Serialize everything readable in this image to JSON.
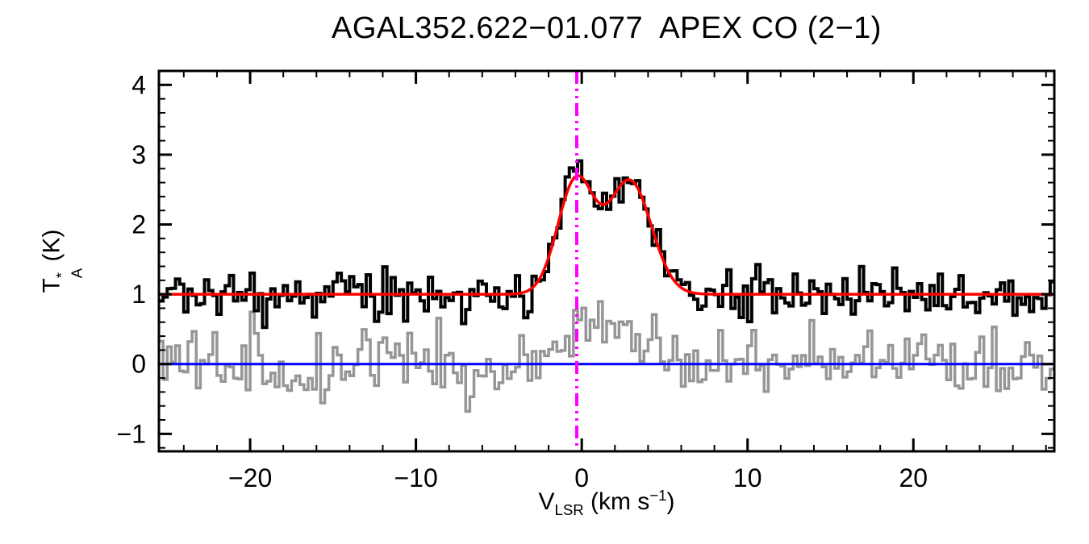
{
  "chart": {
    "title": "AGAL352.622−01.077  APEX CO (2−1)",
    "xlabel": {
      "prefix": "V",
      "sub": "LSR",
      "mid": " (km s",
      "sup": "−1",
      "suffix": ")"
    },
    "ylabel": {
      "prefix": "T",
      "sup": "*",
      "sub": "A",
      "suffix": " (K)"
    }
  },
  "chart_data": {
    "type": "line",
    "title": "AGAL352.622-01.077  APEX CO (2-1)",
    "xlabel": "V_LSR (km s^-1)",
    "ylabel": "T_A^* (K)",
    "xlim": [
      -25.5,
      28.5
    ],
    "ylim": [
      -1.25,
      4.2
    ],
    "grid": false,
    "legend": "none",
    "channel_width_kms": 0.25,
    "xticks": {
      "major": [
        -20,
        -10,
        0,
        10,
        20
      ],
      "labels": [
        "−20",
        "−10",
        "0",
        "10",
        "20"
      ],
      "minor_step": 2
    },
    "yticks": {
      "major": [
        -1,
        0,
        1,
        2,
        3,
        4
      ],
      "labels": [
        "−1",
        "0",
        "1",
        "2",
        "3",
        "4"
      ],
      "minor_step": 0.2
    },
    "series": [
      {
        "name": "observed-spectrum",
        "style": "histogram",
        "color": "#000000",
        "baseline": 1.0,
        "noise_rms": 0.17,
        "seed": 20
      },
      {
        "name": "residual-spectrum",
        "style": "histogram",
        "color": "#969696",
        "baseline": 0.0,
        "noise_rms": 0.26,
        "seed": 77,
        "bump": {
          "amplitude": 0.42,
          "center": 1.2,
          "sigma": 2.3
        }
      },
      {
        "name": "gaussian-fit",
        "style": "smooth",
        "color": "#ff0000",
        "baseline": 1.0,
        "components": [
          {
            "amplitude": 1.62,
            "center": -0.35,
            "sigma": 1.1
          },
          {
            "amplitude": 1.62,
            "center": 2.9,
            "sigma": 1.3
          }
        ]
      },
      {
        "name": "zero-level",
        "style": "hline",
        "color": "#0000ff",
        "y": 0
      },
      {
        "name": "systemic-velocity",
        "style": "vline",
        "color": "#ff00ff",
        "x": -0.3,
        "dash": "dash-dot-dot"
      }
    ],
    "fit_key_points": {
      "baseline_K": 1.0,
      "peak1": {
        "v_kms": -0.4,
        "T_K": 2.65
      },
      "dip": {
        "v_kms": 1.3,
        "T_K": 2.35
      },
      "peak2": {
        "v_kms": 2.8,
        "T_K": 2.6
      },
      "observed_max": {
        "v_kms": -0.5,
        "T_K": 3.15
      }
    }
  }
}
